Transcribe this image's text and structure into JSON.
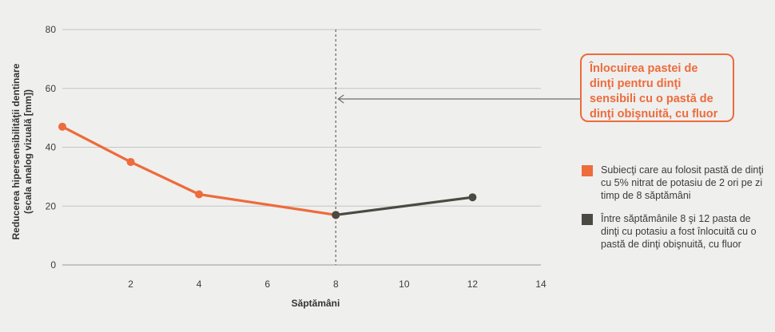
{
  "chart_data": {
    "type": "line",
    "xlabel": "Săptămâni",
    "ylabel_line1": "Reducerea hipersensibilităţii dentinare",
    "ylabel_line2": "(scala analog vizuală [mm])",
    "xlim": [
      0,
      14
    ],
    "ylim": [
      0,
      80
    ],
    "x_ticks": [
      2,
      4,
      6,
      8,
      10,
      12,
      14
    ],
    "y_ticks": [
      0,
      20,
      40,
      60,
      80
    ],
    "grid": "horizontal",
    "legend_position": "right",
    "series": [
      {
        "legend": "Subiecţi care au folosit pastă de dinţi cu 5% nitrat de potasiu de 2 ori pe zi timp de 8 săptămâni",
        "color": "#ee6b3b",
        "x": [
          0,
          2,
          4,
          8
        ],
        "y": [
          47,
          35,
          24,
          17
        ]
      },
      {
        "legend": "Între săptămânile 8 şi 12 pasta de dinţi cu potasiu a fost înlocuită cu o pastă de dinţi obişnuită, cu fluor",
        "color": "#4b4a42",
        "x": [
          8,
          12
        ],
        "y": [
          17,
          23
        ]
      }
    ],
    "annotation": {
      "x": 8,
      "text": "Înlocuirea pastei de dinţi pentru dinţi sensibili cu o pastă de dinţi obişnuită, cu fluor",
      "color": "#ee6b3b"
    }
  }
}
